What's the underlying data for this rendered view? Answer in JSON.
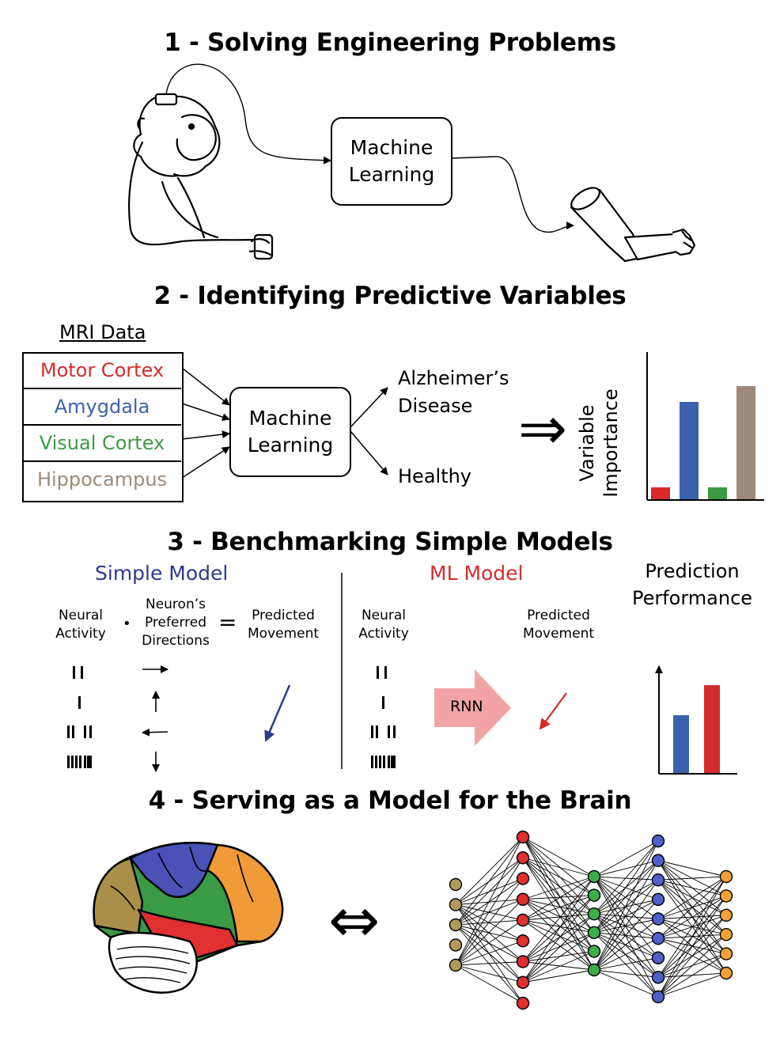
{
  "section1": {
    "title": "1 - Solving Engineering Problems",
    "box_label_line1": "Machine",
    "box_label_line2": "Learning"
  },
  "section2": {
    "title": "2 - Identifying Predictive Variables",
    "mri_heading": "MRI Data",
    "regions": [
      {
        "label": "Motor Cortex",
        "color": "#d62b2b"
      },
      {
        "label": "Amygdala",
        "color": "#3c62ad"
      },
      {
        "label": "Visual Cortex",
        "color": "#3a9a45"
      },
      {
        "label": "Hippocampus",
        "color": "#9d8a7a"
      }
    ],
    "box_label_line1": "Machine",
    "box_label_line2": "Learning",
    "outcome_1_line1": "Alzheimer’s",
    "outcome_1_line2": "Disease",
    "outcome_2": "Healthy",
    "implies_symbol": "⇒",
    "chart_ylabel_line1": "Variable",
    "chart_ylabel_line2": "Importance"
  },
  "section3": {
    "title": "3 - Benchmarking Simple Models",
    "simple_model_label": "Simple Model",
    "simple_model_color": "#2a3b8f",
    "ml_model_label": "ML Model",
    "ml_model_color": "#d62b2b",
    "neural_activity_line1": "Neural",
    "neural_activity_line2": "Activity",
    "dot_symbol": "•",
    "preferred_line1": "Neuron’s",
    "preferred_line2": "Preferred",
    "preferred_line3": "Directions",
    "equals_symbol": "=",
    "predicted_line1": "Predicted",
    "predicted_line2": "Movement",
    "ml_neural_line1": "Neural",
    "ml_neural_line2": "Activity",
    "ml_predicted_line1": "Predicted",
    "ml_predicted_line2": "Movement",
    "rnn_label": "RNN",
    "rnn_color": "#f2a3a3",
    "performance_line1": "Prediction",
    "performance_line2": "Performance"
  },
  "section4": {
    "title": "4 - Serving as a Model for the Brain",
    "equivalence_symbol": "⇔"
  },
  "chart_data": [
    {
      "type": "bar",
      "categories": [
        "Motor Cortex",
        "Amygdala",
        "Visual Cortex",
        "Hippocampus"
      ],
      "values": [
        0.08,
        0.66,
        0.08,
        0.77
      ],
      "colors": [
        "#d62b2b",
        "#3c62ad",
        "#3a9a45",
        "#9d8a7a"
      ],
      "title": "",
      "xlabel": "",
      "ylabel": "Variable Importance",
      "ylim": [
        0,
        1
      ],
      "grid": false
    },
    {
      "type": "bar",
      "categories": [
        "Simple Model",
        "ML Model"
      ],
      "values": [
        0.52,
        0.79
      ],
      "colors": [
        "#3c62ad",
        "#d62b2b"
      ],
      "title": "",
      "xlabel": "",
      "ylabel": "",
      "ylim": [
        0,
        1
      ],
      "grid": false
    }
  ],
  "network": {
    "layers": [
      {
        "nodes": 5,
        "color": "#b09a5a"
      },
      {
        "nodes": 9,
        "color": "#e03030"
      },
      {
        "nodes": 6,
        "color": "#3fab4a"
      },
      {
        "nodes": 9,
        "color": "#5060c8"
      },
      {
        "nodes": 6,
        "color": "#f2a23a"
      }
    ]
  }
}
